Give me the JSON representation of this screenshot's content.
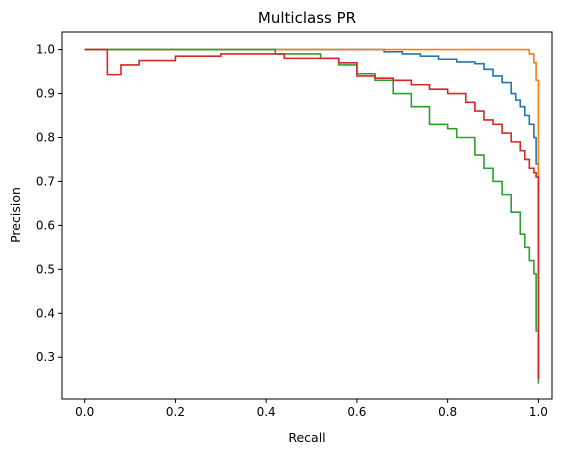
{
  "chart_data": {
    "type": "line",
    "title": "Multiclass PR",
    "xlabel": "Recall",
    "ylabel": "Precision",
    "xlim": [
      -0.05,
      1.03
    ],
    "ylim": [
      0.205,
      1.04
    ],
    "x_ticks": [
      0.0,
      0.2,
      0.4,
      0.6,
      0.8,
      1.0
    ],
    "x_tick_labels": [
      "0.0",
      "0.2",
      "0.4",
      "0.6",
      "0.8",
      "1.0"
    ],
    "y_ticks": [
      0.3,
      0.4,
      0.5,
      0.6,
      0.7,
      0.8,
      0.9,
      1.0
    ],
    "y_tick_labels": [
      "0.3",
      "0.4",
      "0.5",
      "0.6",
      "0.7",
      "0.8",
      "0.9",
      "1.0"
    ],
    "grid": false,
    "legend": false,
    "series": [
      {
        "color": "#1f77b4",
        "x": [
          0.0,
          0.43,
          0.66,
          0.7,
          0.74,
          0.78,
          0.82,
          0.86,
          0.88,
          0.9,
          0.92,
          0.94,
          0.95,
          0.96,
          0.97,
          0.98,
          0.99,
          0.995,
          1.0,
          1.0
        ],
        "y": [
          1.0,
          1.0,
          0.995,
          0.99,
          0.985,
          0.978,
          0.972,
          0.968,
          0.955,
          0.94,
          0.925,
          0.9,
          0.885,
          0.87,
          0.85,
          0.83,
          0.8,
          0.74,
          0.72,
          0.25
        ]
      },
      {
        "color": "#ff7f0e",
        "x": [
          0.0,
          0.97,
          0.98,
          0.99,
          0.995,
          1.0,
          1.0
        ],
        "y": [
          1.0,
          1.0,
          0.99,
          0.97,
          0.93,
          0.81,
          0.25
        ]
      },
      {
        "color": "#2ca02c",
        "x": [
          0.0,
          0.36,
          0.42,
          0.5,
          0.52,
          0.56,
          0.6,
          0.64,
          0.68,
          0.72,
          0.76,
          0.8,
          0.82,
          0.86,
          0.88,
          0.9,
          0.92,
          0.94,
          0.96,
          0.97,
          0.98,
          0.99,
          0.995,
          1.0
        ],
        "y": [
          1.0,
          1.0,
          0.99,
          0.99,
          0.98,
          0.965,
          0.945,
          0.93,
          0.9,
          0.87,
          0.83,
          0.82,
          0.8,
          0.76,
          0.73,
          0.7,
          0.67,
          0.63,
          0.58,
          0.55,
          0.52,
          0.49,
          0.36,
          0.24
        ]
      },
      {
        "color": "#d62728",
        "x": [
          0.0,
          0.05,
          0.05,
          0.08,
          0.12,
          0.2,
          0.3,
          0.4,
          0.44,
          0.5,
          0.56,
          0.6,
          0.64,
          0.68,
          0.72,
          0.76,
          0.8,
          0.84,
          0.86,
          0.88,
          0.9,
          0.92,
          0.94,
          0.96,
          0.97,
          0.98,
          0.99,
          0.995,
          1.0
        ],
        "y": [
          1.0,
          1.0,
          0.943,
          0.965,
          0.975,
          0.985,
          0.99,
          0.99,
          0.98,
          0.98,
          0.97,
          0.94,
          0.935,
          0.93,
          0.92,
          0.91,
          0.9,
          0.88,
          0.86,
          0.84,
          0.83,
          0.81,
          0.79,
          0.77,
          0.75,
          0.73,
          0.72,
          0.71,
          0.25
        ]
      }
    ]
  }
}
